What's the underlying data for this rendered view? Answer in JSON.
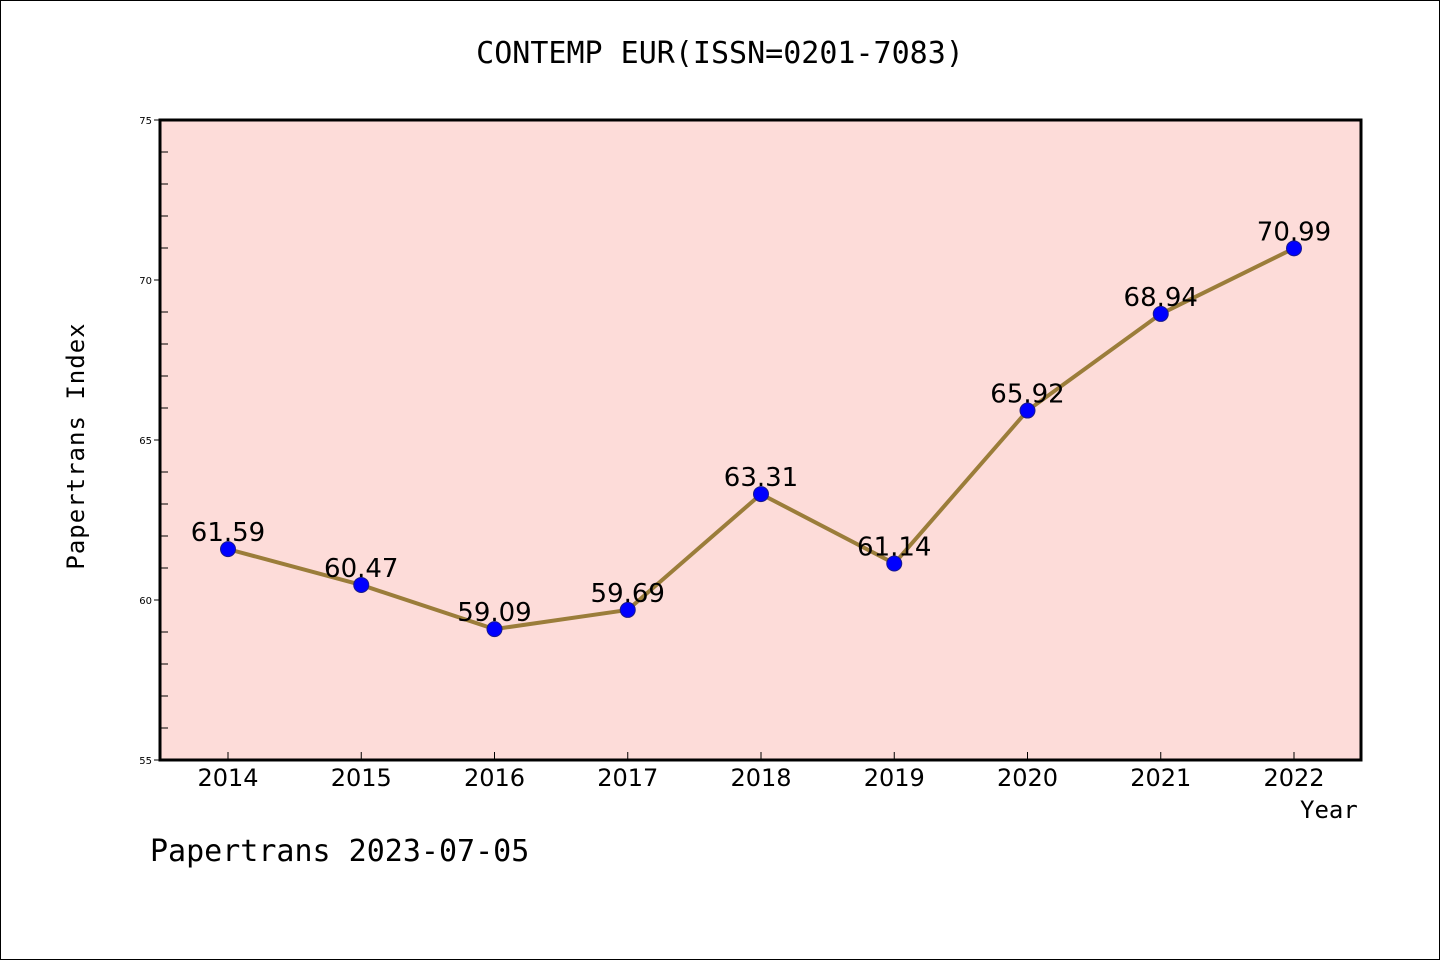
{
  "title": "CONTEMP EUR(ISSN=0201-7083)",
  "footer": "Papertrans 2023-07-05",
  "chart_data": {
    "type": "line",
    "title": "CONTEMP EUR(ISSN=0201-7083)",
    "xlabel": "Year",
    "ylabel": "Papertrans Index",
    "categories": [
      "2014",
      "2015",
      "2016",
      "2017",
      "2018",
      "2019",
      "2020",
      "2021",
      "2022"
    ],
    "series": [
      {
        "values": [
          61.59,
          60.47,
          59.09,
          59.69,
          63.31,
          61.14,
          65.92,
          68.94,
          70.99
        ],
        "labels": [
          "61.59",
          "60.47",
          "59.09",
          "59.69",
          "63.31",
          "61.14",
          "65.92",
          "68.94",
          "70.99"
        ]
      }
    ],
    "ylim": [
      55,
      75
    ],
    "yticks": [
      "55",
      "60",
      "65",
      "70",
      "75"
    ],
    "grid": false,
    "colors": {
      "plot_background": "#fddcd9",
      "line": "#9b7d3a",
      "marker": "#0000ff",
      "axis": "#000000"
    }
  }
}
